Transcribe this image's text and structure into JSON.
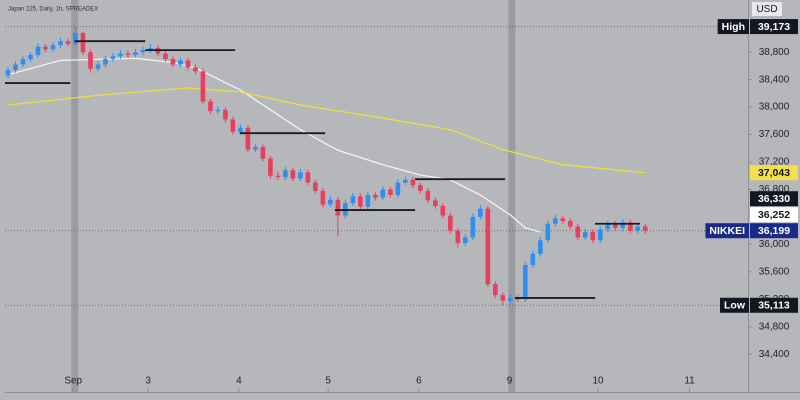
{
  "chart_data": {
    "type": "candlestick",
    "title": "Japan 225, Daily, 1h, SPREADEX",
    "currency": "USD",
    "up_color": "#2f8ff0",
    "down_color": "#e5405e",
    "grid": false,
    "xlim": [
      -0.4,
      98.7
    ],
    "ylim": [
      34170,
      39560
    ],
    "xticks": [
      {
        "value": 8.7,
        "label": "Sep"
      },
      {
        "value": 18.7,
        "label": "3"
      },
      {
        "value": 30.8,
        "label": "4"
      },
      {
        "value": 42.7,
        "label": "5"
      },
      {
        "value": 54.8,
        "label": "6"
      },
      {
        "value": 66.9,
        "label": "9"
      },
      {
        "value": 78.7,
        "label": "10"
      },
      {
        "value": 90.9,
        "label": "11"
      }
    ],
    "yticks": [
      {
        "value": 34400,
        "label": "34,400"
      },
      {
        "value": 34800,
        "label": "34,800"
      },
      {
        "value": 35200,
        "label": "35,200"
      },
      {
        "value": 35600,
        "label": "35,600"
      },
      {
        "value": 36000,
        "label": "36,000"
      },
      {
        "value": 36800,
        "label": "36,800"
      },
      {
        "value": 37200,
        "label": "37,200"
      },
      {
        "value": 37600,
        "label": "37,600"
      },
      {
        "value": 38000,
        "label": "38,000"
      },
      {
        "value": 38400,
        "label": "38,400"
      },
      {
        "value": 38800,
        "label": "38,800"
      }
    ],
    "candles": [
      [
        38460,
        38580,
        38420,
        38540
      ],
      [
        38540,
        38660,
        38500,
        38620
      ],
      [
        38620,
        38740,
        38580,
        38700
      ],
      [
        38700,
        38800,
        38660,
        38760
      ],
      [
        38760,
        38930,
        38720,
        38880
      ],
      [
        38880,
        38920,
        38800,
        38840
      ],
      [
        38840,
        38950,
        38800,
        38900
      ],
      [
        38900,
        39010,
        38860,
        38960
      ],
      [
        38960,
        39000,
        38880,
        38920
      ],
      [
        38920,
        39173,
        38900,
        39080
      ],
      [
        39080,
        39100,
        38760,
        38800
      ],
      [
        38800,
        38840,
        38500,
        38560
      ],
      [
        38560,
        38670,
        38520,
        38620
      ],
      [
        38620,
        38750,
        38580,
        38700
      ],
      [
        38700,
        38790,
        38660,
        38740
      ],
      [
        38740,
        38830,
        38700,
        38780
      ],
      [
        38780,
        38820,
        38720,
        38760
      ],
      [
        38760,
        38850,
        38720,
        38800
      ],
      [
        38800,
        38880,
        38760,
        38830
      ],
      [
        38830,
        38920,
        38790,
        38860
      ],
      [
        38860,
        38900,
        38740,
        38780
      ],
      [
        38780,
        38820,
        38660,
        38700
      ],
      [
        38700,
        38740,
        38580,
        38620
      ],
      [
        38620,
        38720,
        38580,
        38680
      ],
      [
        38680,
        38720,
        38540,
        38580
      ],
      [
        38580,
        38620,
        38480,
        38520
      ],
      [
        38520,
        38560,
        38040,
        38080
      ],
      [
        38080,
        38120,
        37900,
        37940
      ],
      [
        37940,
        38010,
        37900,
        37960
      ],
      [
        37960,
        38000,
        37780,
        37820
      ],
      [
        37820,
        37860,
        37600,
        37640
      ],
      [
        37640,
        37750,
        37600,
        37700
      ],
      [
        37700,
        37740,
        37340,
        37380
      ],
      [
        37380,
        37470,
        37340,
        37420
      ],
      [
        37420,
        37460,
        37210,
        37250
      ],
      [
        37250,
        37290,
        36960,
        37000
      ],
      [
        37000,
        37060,
        36940,
        36980
      ],
      [
        36980,
        37130,
        36940,
        37080
      ],
      [
        37080,
        37120,
        36920,
        36960
      ],
      [
        36960,
        37100,
        36920,
        37050
      ],
      [
        37050,
        37090,
        36860,
        36900
      ],
      [
        36900,
        36940,
        36740,
        36780
      ],
      [
        36780,
        36820,
        36540,
        36580
      ],
      [
        36580,
        36700,
        36540,
        36650
      ],
      [
        36650,
        36690,
        36120,
        36420
      ],
      [
        36420,
        36650,
        36380,
        36600
      ],
      [
        36600,
        36750,
        36560,
        36700
      ],
      [
        36700,
        36740,
        36510,
        36550
      ],
      [
        36550,
        36770,
        36510,
        36720
      ],
      [
        36720,
        36760,
        36640,
        36680
      ],
      [
        36680,
        36850,
        36640,
        36800
      ],
      [
        36800,
        36840,
        36680,
        36720
      ],
      [
        36720,
        36950,
        36680,
        36900
      ],
      [
        36900,
        36990,
        36860,
        36940
      ],
      [
        36940,
        36980,
        36820,
        36860
      ],
      [
        36860,
        36900,
        36740,
        36780
      ],
      [
        36780,
        36820,
        36600,
        36640
      ],
      [
        36640,
        36680,
        36520,
        36560
      ],
      [
        36560,
        36600,
        36380,
        36420
      ],
      [
        36420,
        36460,
        36160,
        36200
      ],
      [
        36200,
        36240,
        35950,
        36020
      ],
      [
        36020,
        36150,
        35980,
        36100
      ],
      [
        36100,
        36450,
        36060,
        36400
      ],
      [
        36400,
        36570,
        36360,
        36520
      ],
      [
        36520,
        36560,
        35380,
        35420
      ],
      [
        35420,
        35460,
        35220,
        35260
      ],
      [
        35260,
        35300,
        35113,
        35180
      ],
      [
        35180,
        35270,
        35140,
        35220
      ],
      [
        35220,
        35260,
        35160,
        35200
      ],
      [
        35200,
        35750,
        35160,
        35700
      ],
      [
        35700,
        35910,
        35660,
        35860
      ],
      [
        35860,
        36110,
        35820,
        36060
      ],
      [
        36060,
        36350,
        36020,
        36300
      ],
      [
        36300,
        36430,
        36260,
        36380
      ],
      [
        36380,
        36420,
        36300,
        36340
      ],
      [
        36340,
        36380,
        36220,
        36260
      ],
      [
        36260,
        36300,
        36060,
        36100
      ],
      [
        36100,
        36230,
        36060,
        36180
      ],
      [
        36180,
        36220,
        36020,
        36060
      ],
      [
        36060,
        36270,
        36020,
        36220
      ],
      [
        36220,
        36350,
        36180,
        36300
      ],
      [
        36300,
        36340,
        36200,
        36240
      ],
      [
        36240,
        36370,
        36200,
        36320
      ],
      [
        36320,
        36360,
        36160,
        36200
      ],
      [
        36200,
        36310,
        36160,
        36260
      ],
      [
        36260,
        36300,
        36150,
        36199
      ]
    ],
    "lines": [
      {
        "color": "#f2f2f2",
        "x": [
          0,
          7,
          17,
          22,
          25,
          31,
          35,
          39,
          44,
          50,
          55,
          59,
          63,
          67,
          69,
          71
        ],
        "values": [
          38470,
          38680,
          38710,
          38650,
          38570,
          38250,
          37960,
          37670,
          37370,
          37160,
          37010,
          36940,
          36720,
          36430,
          36240,
          36180
        ]
      },
      {
        "color": "#f0dc3c",
        "x": [
          0,
          12,
          24,
          31,
          39,
          50,
          59,
          66,
          74,
          85
        ],
        "values": [
          38030,
          38170,
          38280,
          38220,
          38030,
          37840,
          37670,
          37380,
          37160,
          37043
        ]
      }
    ],
    "levels": [
      {
        "x": [
          -0.4,
          8.3
        ],
        "value": 38350
      },
      {
        "x": [
          8.9,
          18.3
        ],
        "value": 38960
      },
      {
        "x": [
          18.3,
          30.3
        ],
        "value": 38830
      },
      {
        "x": [
          30.9,
          42.3
        ],
        "value": 37620
      },
      {
        "x": [
          43.6,
          54.3
        ],
        "value": 36500
      },
      {
        "x": [
          54.3,
          66.3
        ],
        "value": 36950
      },
      {
        "x": [
          67.6,
          78.3
        ],
        "value": 35220
      },
      {
        "x": [
          78.3,
          84.3
        ],
        "value": 36300
      }
    ],
    "markers": [
      {
        "name": "High",
        "value": 39173,
        "value_label": "39,173",
        "color": "#131722",
        "text_color": "#ffffff",
        "dotted": true
      },
      {
        "value": 37043,
        "value_label": "37,043",
        "color": "#f5df4d",
        "text_color": "#131722",
        "dotted": false
      },
      {
        "value": 36330,
        "value_label": "36,330",
        "color": "#131722",
        "text_color": "#ffffff",
        "dotted": false
      },
      {
        "value": 36252,
        "value_label": "36,252",
        "color": "#ffffff",
        "text_color": "#131722",
        "dotted": false
      },
      {
        "name": "NIKKEI",
        "value": 36199,
        "value_label": "36,199",
        "color": "#1a2a8a",
        "text_color": "#ffffff",
        "dotted": true
      },
      {
        "name": "Low",
        "value": 35113,
        "value_label": "35,113",
        "color": "#131722",
        "text_color": "#ffffff",
        "dotted": true
      }
    ],
    "session_breaks": [
      8.9,
      67.2
    ]
  }
}
